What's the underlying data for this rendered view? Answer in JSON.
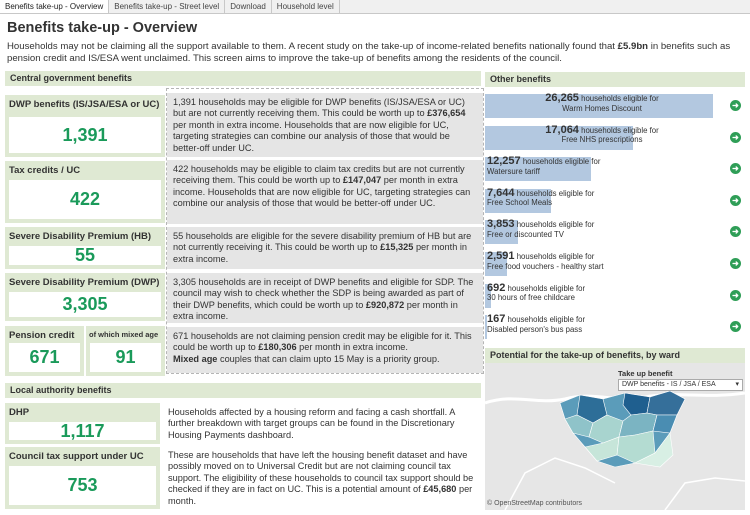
{
  "tabs": [
    "Benefits take-up - Overview",
    "Benefits take-up - Street level",
    "Download",
    "Household level"
  ],
  "title": "Benefits take-up - Overview",
  "intro": {
    "part1": "Households may not be claiming all the support available to them.  A recent study on the take-up of income-related benefits nationally found that ",
    "bold": "£5.9bn",
    "part2": " in benefits such as pension credit and IS/ESA went unclaimed. This screen aims to improve the take-up of benefits among the residents of the council."
  },
  "central": {
    "header": "Central government benefits",
    "dwp": {
      "label": "DWP benefits (IS/JSA/ESA or UC)",
      "value": "1,391",
      "desc_a": "1,391 households may be eligible for DWP benefits (IS/JSA/ESA or UC) but are not currently receiving them. This could be worth up to ",
      "desc_bold": "£376,654",
      "desc_b": " per month in extra income. Households that are now eligible for UC, targeting strategies can combine our analysis of those that would be better-off under UC."
    },
    "tax": {
      "label": "Tax credits / UC",
      "value": "422",
      "desc_a": "422 households may be eligible to claim tax credits but are not currently receiving them. This could be worth up to ",
      "desc_bold": "£147,047",
      "desc_b": " per month in extra income. Households that are now eligible for UC, targeting strategies can combine our analysis of those that would be better-off under UC."
    },
    "sdp_hb": {
      "label": "Severe Disability Premium (HB)",
      "value": "55",
      "desc_a": "55 households are eligible for the severe disability premium of HB but are not currently receiving it. This could be worth up to ",
      "desc_bold": "£15,325",
      "desc_b": " per month in extra income."
    },
    "sdp_dwp": {
      "label": "Severe Disability Premium (DWP)",
      "value": "3,305",
      "desc_a": "3,305 households are in receipt of DWP benefits and eligible for SDP. The council may wish to check whether the SDP is being awarded as part of their DWP benefits, which could be worth up to ",
      "desc_bold": "£920,872",
      "desc_b": " per month in extra income."
    },
    "pension": {
      "label": "Pension credit",
      "value": "671",
      "mixed_label": "of which mixed age",
      "mixed_value": "91",
      "desc_a": "671 households are not claiming pension credit may be eligible for it. This could be worth up to ",
      "desc_bold": "£180,306",
      "desc_b": " per month in extra income.",
      "desc_bold2": "Mixed age",
      "desc_c": " couples that can claim upto 15 May is a priority group."
    }
  },
  "local": {
    "header": "Local authority benefits",
    "dhp": {
      "label": "DHP",
      "value": "1,117",
      "desc": "Households affected by a housing reform and facing a cash shortfall. A further breakdown with target groups can be found in the Discretionary Housing Payments dashboard."
    },
    "ctax": {
      "label": "Council tax support under UC",
      "value": "753",
      "desc_a": "These are households that have left the housing benefit dataset and have possibly moved on to Universal Credit but are not claiming council tax support. The eligibility of these households to council tax support should be checked if they are in fact on UC. This is a potential amount of ",
      "desc_bold": "£45,680",
      "desc_b": " per month."
    }
  },
  "other": {
    "header": "Other benefits",
    "max": 26265,
    "items": [
      {
        "value": 26265,
        "num": "26,265",
        "line1": " households eligible for",
        "line2": "Warm Homes Discount"
      },
      {
        "value": 17064,
        "num": "17,064",
        "line1": " households eligible for",
        "line2": "Free NHS prescriptions"
      },
      {
        "value": 12257,
        "num": "12,257",
        "line1": " households eligible for",
        "line2": "Watersure tariff"
      },
      {
        "value": 7644,
        "num": "7,644",
        "line1": " households eligible for",
        "line2": "Free School Meals"
      },
      {
        "value": 3853,
        "num": "3,853",
        "line1": " households eligible for",
        "line2": "Free or discounted TV"
      },
      {
        "value": 2591,
        "num": "2,591",
        "line1": " households eligible for",
        "line2": "Free food vouchers - healthy start"
      },
      {
        "value": 692,
        "num": "692",
        "line1": " households eligible for",
        "line2": "30 hours of free childcare"
      },
      {
        "value": 167,
        "num": "167",
        "line1": " households eligible for",
        "line2": "Disabled person's bus pass"
      }
    ]
  },
  "map": {
    "header": "Potential for the take-up of benefits, by ward",
    "filter_label": "Take up benefit",
    "filter_value": "DWP benefits - IS / JSA / ESA",
    "attribution": "© OpenStreetMap contributors"
  },
  "colors": {
    "accent_green": "#1a9a5a",
    "card_bg": "#dfe9d3",
    "bar": "#b3c8e0",
    "arrow": "#2f9e57"
  }
}
